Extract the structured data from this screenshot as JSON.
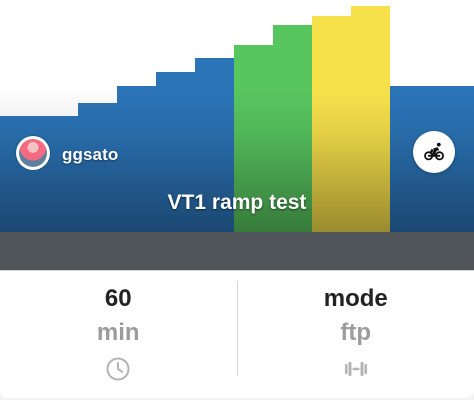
{
  "workout": {
    "title": "VT1 ramp test",
    "author": "ggsato",
    "ride_icon": "bicycle-icon",
    "avatar_icon": "avatar-photo",
    "profile_colors": {
      "blue": "#2b74b7",
      "green": "#58c65f",
      "yellow": "#f7e14b",
      "strip": "#50555a"
    }
  },
  "stats": {
    "duration_value": "60",
    "duration_label": "min",
    "duration_icon": "clock-icon",
    "mode_value": "mode",
    "mode_label": "ftp",
    "mode_icon": "dumbbell-icon"
  }
}
